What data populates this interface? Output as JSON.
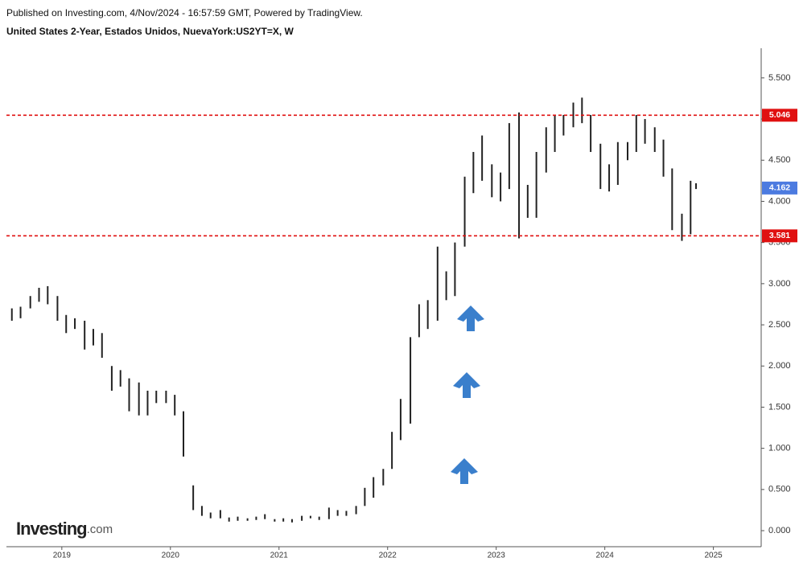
{
  "chart_data": {
    "type": "hilo",
    "title": "United States 2-Year, Estados Unidos, NuevaYork:US2YT=X, W",
    "subtitle": "Published on Investing.com, 4/Nov/2024 - 16:57:59 GMT, Powered by TradingView.",
    "logo": [
      "Investing",
      ".com"
    ],
    "color": "#222222",
    "x": [
      2018.54,
      2018.62,
      2018.71,
      2018.79,
      2018.87,
      2018.96,
      2019.04,
      2019.12,
      2019.21,
      2019.29,
      2019.37,
      2019.46,
      2019.54,
      2019.62,
      2019.71,
      2019.79,
      2019.87,
      2019.96,
      2020.04,
      2020.12,
      2020.21,
      2020.29,
      2020.37,
      2020.46,
      2020.54,
      2020.62,
      2020.71,
      2020.79,
      2020.87,
      2020.96,
      2021.04,
      2021.12,
      2021.21,
      2021.29,
      2021.37,
      2021.46,
      2021.54,
      2021.62,
      2021.71,
      2021.79,
      2021.87,
      2021.96,
      2022.04,
      2022.12,
      2022.21,
      2022.29,
      2022.37,
      2022.46,
      2022.54,
      2022.62,
      2022.71,
      2022.79,
      2022.87,
      2022.96,
      2023.04,
      2023.12,
      2023.21,
      2023.29,
      2023.37,
      2023.46,
      2023.54,
      2023.62,
      2023.71,
      2023.79,
      2023.87,
      2023.96,
      2024.04,
      2024.12,
      2024.21,
      2024.29,
      2024.37,
      2024.46,
      2024.54,
      2024.62,
      2024.71,
      2024.79,
      2024.84
    ],
    "high": [
      2.7,
      2.72,
      2.85,
      2.95,
      2.97,
      2.85,
      2.62,
      2.58,
      2.55,
      2.45,
      2.4,
      2.0,
      1.95,
      1.85,
      1.8,
      1.7,
      1.7,
      1.7,
      1.65,
      1.45,
      0.55,
      0.3,
      0.22,
      0.25,
      0.16,
      0.17,
      0.15,
      0.17,
      0.2,
      0.14,
      0.15,
      0.14,
      0.18,
      0.18,
      0.17,
      0.28,
      0.25,
      0.24,
      0.3,
      0.52,
      0.65,
      0.75,
      1.2,
      1.6,
      2.35,
      2.75,
      2.8,
      3.45,
      3.15,
      3.5,
      4.3,
      4.6,
      4.8,
      4.45,
      4.35,
      4.95,
      5.08,
      4.2,
      4.6,
      4.9,
      5.05,
      5.05,
      5.2,
      5.26,
      5.05,
      4.7,
      4.45,
      4.72,
      4.72,
      5.05,
      5.0,
      4.9,
      4.75,
      4.4,
      3.85,
      4.25,
      4.22
    ],
    "low": [
      2.55,
      2.58,
      2.7,
      2.78,
      2.75,
      2.55,
      2.4,
      2.45,
      2.2,
      2.25,
      2.1,
      1.7,
      1.75,
      1.45,
      1.4,
      1.4,
      1.55,
      1.55,
      1.4,
      0.9,
      0.25,
      0.18,
      0.15,
      0.15,
      0.11,
      0.12,
      0.12,
      0.13,
      0.14,
      0.11,
      0.11,
      0.1,
      0.12,
      0.15,
      0.13,
      0.14,
      0.18,
      0.18,
      0.2,
      0.3,
      0.4,
      0.55,
      0.75,
      1.1,
      1.3,
      2.35,
      2.45,
      2.55,
      2.8,
      2.85,
      3.45,
      4.1,
      4.25,
      4.05,
      4.0,
      4.15,
      3.55,
      3.8,
      3.8,
      4.35,
      4.6,
      4.8,
      4.9,
      4.95,
      4.6,
      4.15,
      4.12,
      4.2,
      4.5,
      4.6,
      4.7,
      4.6,
      4.3,
      3.65,
      3.52,
      3.6,
      4.15
    ],
    "xlim": [
      2018.49,
      2025.44
    ],
    "xticks": [
      2019,
      2020,
      2021,
      2022,
      2023,
      2024,
      2025
    ],
    "ylim": [
      -0.195,
      5.86
    ],
    "yticks": [
      {
        "value": 0,
        "label": "0.000"
      },
      {
        "value": 0.5,
        "label": "0.500"
      },
      {
        "value": 1,
        "label": "1.000"
      },
      {
        "value": 1.5,
        "label": "1.500"
      },
      {
        "value": 2,
        "label": "2.000"
      },
      {
        "value": 2.5,
        "label": "2.500"
      },
      {
        "value": 3,
        "label": "3.000"
      },
      {
        "value": 3.5,
        "label": "3.500"
      },
      {
        "value": 4,
        "label": "4.000"
      },
      {
        "value": 4.5,
        "label": "4.500"
      },
      {
        "value": 5,
        "label": "5.000"
      },
      {
        "value": 5.5,
        "label": "5.500"
      }
    ],
    "levels": [
      5.046,
      3.581
    ],
    "level_color": "#e01010",
    "last": 4.162,
    "last_color": "#4c7be0"
  }
}
